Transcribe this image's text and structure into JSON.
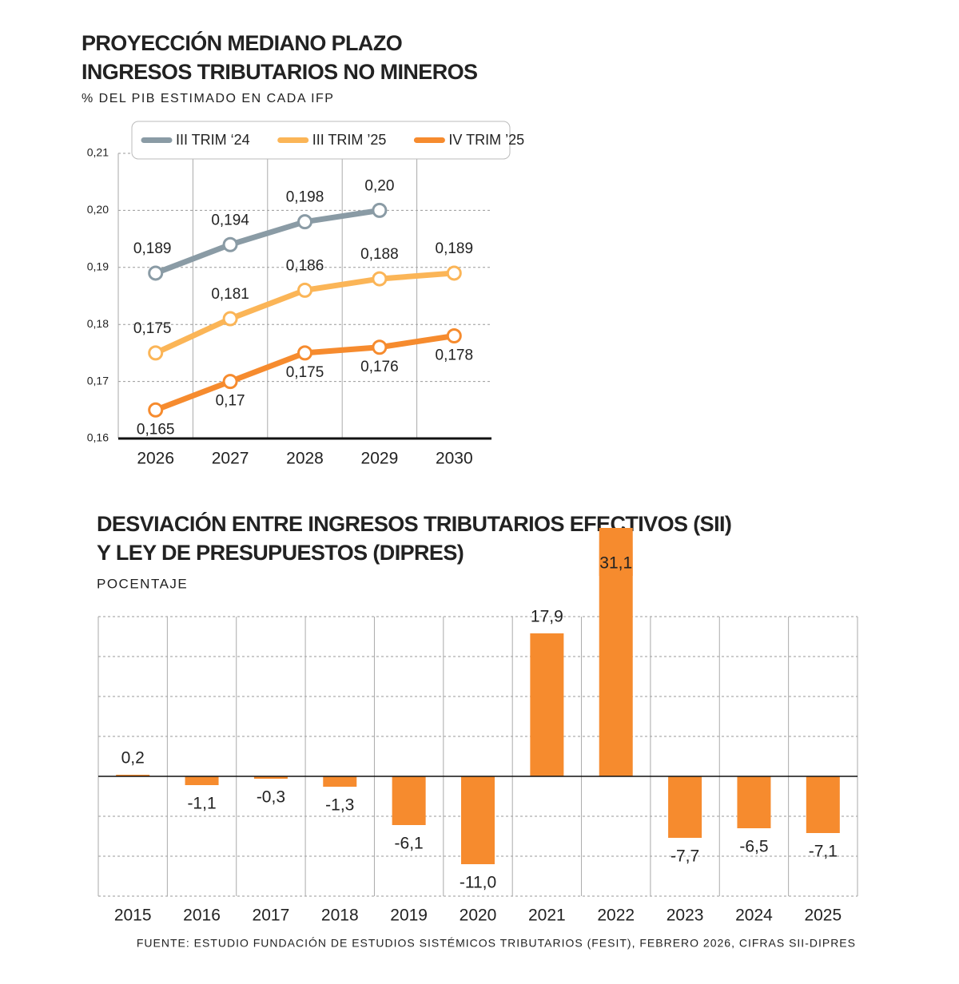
{
  "chart_data": [
    {
      "type": "line",
      "title": [
        "PROYECCIÓN MEDIANO PLAZO",
        "INGRESOS TRIBUTARIOS NO MINEROS"
      ],
      "subtitle": "% DEL PIB ESTIMADO EN CADA IFP",
      "categories": [
        "2026",
        "2027",
        "2028",
        "2029",
        "2030"
      ],
      "ylim": [
        0.16,
        0.21
      ],
      "yticks": [
        {
          "value": 0.16,
          "label": "0,16"
        },
        {
          "value": 0.17,
          "label": "0,17"
        },
        {
          "value": 0.18,
          "label": "0,18"
        },
        {
          "value": 0.19,
          "label": "0,19"
        },
        {
          "value": 0.2,
          "label": "0,20"
        },
        {
          "value": 0.21,
          "label": "0,21"
        }
      ],
      "grid": true,
      "series": [
        {
          "name": "III TRIM ‘24",
          "color": "#8a9ba5",
          "values": [
            0.189,
            0.194,
            0.198,
            0.2,
            null
          ],
          "value_labels": [
            "0,189",
            "0,194",
            "0,198",
            "0,20",
            null
          ]
        },
        {
          "name": "III TRIM ’25",
          "color": "#fbb557",
          "values": [
            0.175,
            0.181,
            0.186,
            0.188,
            0.189
          ],
          "value_labels": [
            "0,175",
            "0,181",
            "0,186",
            "0,188",
            "0,189"
          ]
        },
        {
          "name": "IV TRIM ’25",
          "color": "#f68b2e",
          "values": [
            0.165,
            0.17,
            0.175,
            0.176,
            0.178
          ],
          "value_labels": [
            "0,165",
            "0,17",
            "0,175",
            "0,176",
            "0,178"
          ]
        }
      ]
    },
    {
      "type": "bar",
      "title": [
        "DESVIACIÓN ENTRE INGRESOS TRIBUTARIOS EFECTIVOS (SII)",
        "Y LEY DE PRESUPUESTOS (DIPRES)"
      ],
      "subtitle": "POCENTAJE",
      "categories": [
        "2015",
        "2016",
        "2017",
        "2018",
        "2019",
        "2020",
        "2021",
        "2022",
        "2023",
        "2024",
        "2025"
      ],
      "values": [
        0.2,
        -1.1,
        -0.3,
        -1.3,
        -6.1,
        -11.0,
        17.9,
        31.1,
        -7.7,
        -6.5,
        -7.1
      ],
      "value_labels": [
        "0,2",
        "-1,1",
        "-0,3",
        "-1,3",
        "-6,1",
        "-11,0",
        "17,9",
        "31,1",
        "-7,7",
        "-6,5",
        "-7,1"
      ],
      "color": "#f68b2e",
      "ylim": [
        -15,
        20
      ],
      "yticks": [
        -15,
        -10,
        -5,
        0,
        5,
        10,
        15,
        20
      ],
      "grid": true
    }
  ],
  "source": "FUENTE: ESTUDIO FUNDACIÓN DE ESTUDIOS SISTÉMICOS TRIBUTARIOS (FESIT), FEBRERO 2026, CIFRAS SII-DIPRES"
}
